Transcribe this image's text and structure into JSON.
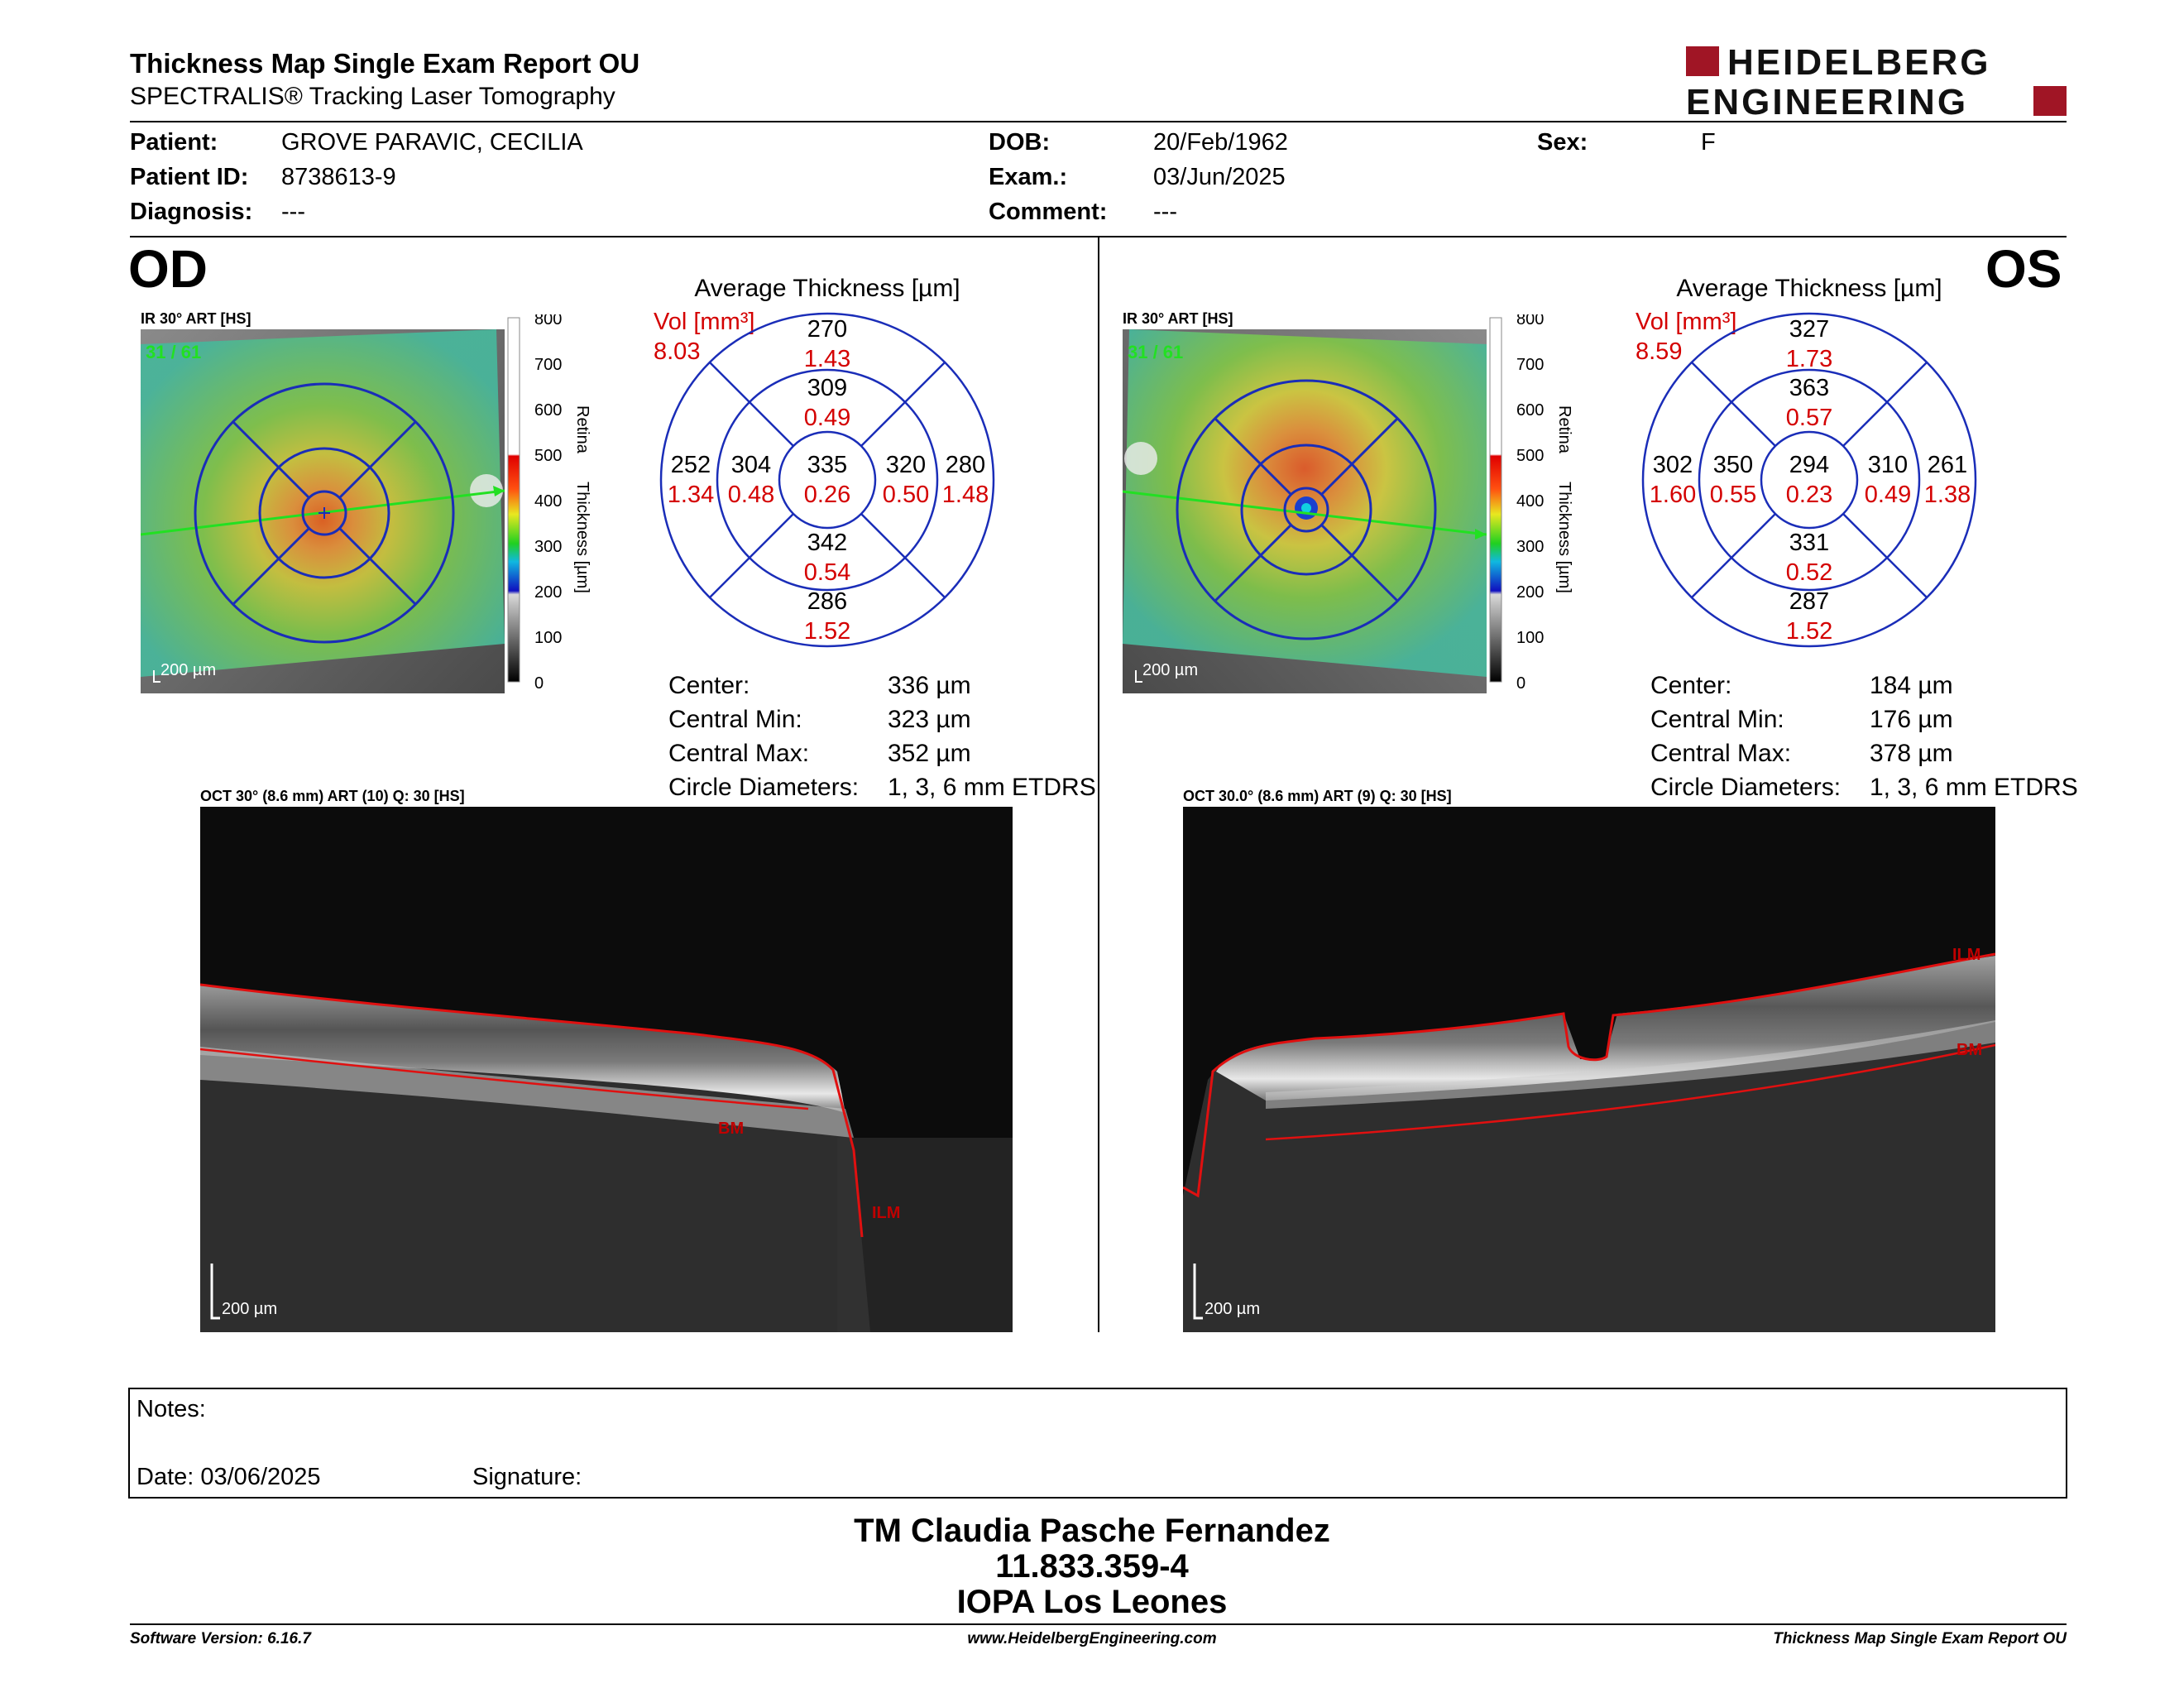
{
  "report": {
    "title": "Thickness Map Single Exam Report OU",
    "subtitle": "SPECTRALIS® Tracking Laser Tomography",
    "logo_line1": "HEIDELBERG",
    "logo_line2": "ENGINEERING"
  },
  "patient": {
    "patient_label": "Patient:",
    "patient_value": "GROVE PARAVIC, CECILIA",
    "id_label": "Patient ID:",
    "id_value": "8738613-9",
    "diag_label": "Diagnosis:",
    "diag_value": "---",
    "dob_label": "DOB:",
    "dob_value": "20/Feb/1962",
    "exam_label": "Exam.:",
    "exam_value": "03/Jun/2025",
    "comment_label": "Comment:",
    "comment_value": "---",
    "sex_label": "Sex:",
    "sex_value": "F"
  },
  "od": {
    "eye": "OD",
    "ir_label": "IR 30° ART [HS]",
    "frame": "31 / 61",
    "scale": "200 µm",
    "avg_title": "Average Thickness [µm]",
    "vol_label": "Vol [mm³]",
    "vol_total": "8.03",
    "sectors": {
      "center_t": "335",
      "center_v": "0.26",
      "inner_sup_t": "309",
      "inner_sup_v": "0.49",
      "inner_inf_t": "342",
      "inner_inf_v": "0.54",
      "inner_left_t": "304",
      "inner_left_v": "0.48",
      "inner_right_t": "320",
      "inner_right_v": "0.50",
      "outer_sup_t": "270",
      "outer_sup_v": "1.43",
      "outer_inf_t": "286",
      "outer_inf_v": "1.52",
      "outer_left_t": "252",
      "outer_left_v": "1.34",
      "outer_right_t": "280",
      "outer_right_v": "1.48"
    },
    "stats": {
      "center_l": "Center:",
      "center_v": "336 µm",
      "min_l": "Central Min:",
      "min_v": "323 µm",
      "max_l": "Central Max:",
      "max_v": "352 µm",
      "diam_l": "Circle Diameters:",
      "diam_v": "1, 3, 6 mm ETDRS"
    },
    "oct_label": "OCT 30° (8.6 mm) ART (10) Q: 30 [HS]",
    "oct_scale": "200 µm",
    "ilm": "ILM",
    "bm": "BM"
  },
  "os": {
    "eye": "OS",
    "ir_label": "IR 30° ART [HS]",
    "frame": "31 / 61",
    "scale": "200 µm",
    "avg_title": "Average Thickness [µm]",
    "vol_label": "Vol [mm³]",
    "vol_total": "8.59",
    "sectors": {
      "center_t": "294",
      "center_v": "0.23",
      "inner_sup_t": "363",
      "inner_sup_v": "0.57",
      "inner_inf_t": "331",
      "inner_inf_v": "0.52",
      "inner_left_t": "350",
      "inner_left_v": "0.55",
      "inner_right_t": "310",
      "inner_right_v": "0.49",
      "outer_sup_t": "327",
      "outer_sup_v": "1.73",
      "outer_inf_t": "287",
      "outer_inf_v": "1.52",
      "outer_left_t": "302",
      "outer_left_v": "1.60",
      "outer_right_t": "261",
      "outer_right_v": "1.38"
    },
    "stats": {
      "center_l": "Center:",
      "center_v": "184 µm",
      "min_l": "Central Min:",
      "min_v": "176 µm",
      "max_l": "Central Max:",
      "max_v": "378 µm",
      "diam_l": "Circle Diameters:",
      "diam_v": "1, 3, 6 mm ETDRS"
    },
    "oct_label": "OCT 30.0° (8.6 mm) ART (9) Q: 30 [HS]",
    "oct_scale": "200 µm",
    "ilm": "ILM",
    "bm": "BM"
  },
  "colorbar": {
    "ticks": [
      "800",
      "700",
      "600",
      "500",
      "400",
      "300",
      "200",
      "100",
      "0"
    ],
    "word1": "Retina",
    "word2": "Thickness [µm]"
  },
  "notes": {
    "notes_label": "Notes:",
    "date_label": "Date: 03/06/2025",
    "signature_label": "Signature:"
  },
  "signature": {
    "name": "TM Claudia Pasche Fernandez",
    "rut": "11.833.359-4",
    "place": "IOPA Los Leones"
  },
  "footer": {
    "software": "Software Version: 6.16.7",
    "website": "www.HeidelbergEngineering.com",
    "report_name": "Thickness Map Single Exam Report OU"
  },
  "colors": {
    "ring_blue": "#1a2db8",
    "vol_red": "#d40000",
    "logo_red": "#a01525",
    "map_green": "#5cc04a",
    "ilm_red": "#e01010"
  }
}
